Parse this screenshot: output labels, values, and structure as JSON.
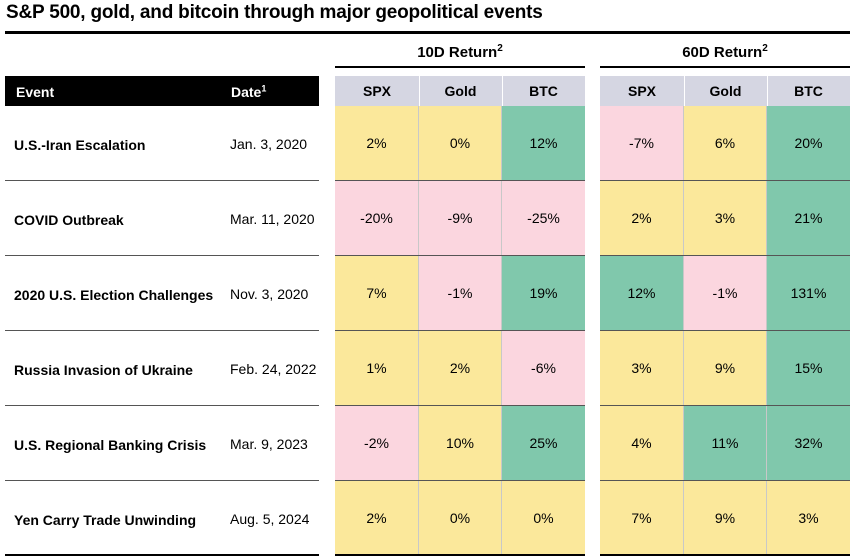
{
  "title": "S&P 500, gold, and bitcoin through major geopolitical events",
  "groups": {
    "ten": {
      "label": "10D Return",
      "sup": "2"
    },
    "sixty": {
      "label": "60D Return",
      "sup": "2"
    }
  },
  "header": {
    "event": "Event",
    "date": "Date",
    "date_sup": "1"
  },
  "columns": [
    "SPX",
    "Gold",
    "BTC"
  ],
  "colors": {
    "positive_small": "#fbe89b",
    "negative": "#fbd6df",
    "strong": "#80c8ac",
    "header_gray": "#d5d6e2"
  },
  "chart_data": {
    "type": "table",
    "title": "S&P 500, gold, and bitcoin through major geopolitical events",
    "column_groups": [
      "10D Return",
      "60D Return"
    ],
    "columns": [
      "SPX",
      "Gold",
      "BTC"
    ],
    "rows": [
      {
        "event": "U.S.-Iran Escalation",
        "date": "Jan. 3, 2020",
        "d10": [
          "2%",
          "0%",
          "12%"
        ],
        "d60": [
          "-7%",
          "6%",
          "20%"
        ],
        "c10": [
          "y",
          "y",
          "g"
        ],
        "c60": [
          "p",
          "y",
          "g"
        ]
      },
      {
        "event": "COVID Outbreak",
        "date": "Mar. 11, 2020",
        "d10": [
          "-20%",
          "-9%",
          "-25%"
        ],
        "d60": [
          "2%",
          "3%",
          "21%"
        ],
        "c10": [
          "p",
          "p",
          "p"
        ],
        "c60": [
          "y",
          "y",
          "g"
        ]
      },
      {
        "event": "2020 U.S. Election Challenges",
        "date": "Nov. 3, 2020",
        "d10": [
          "7%",
          "-1%",
          "19%"
        ],
        "d60": [
          "12%",
          "-1%",
          "131%"
        ],
        "c10": [
          "y",
          "p",
          "g"
        ],
        "c60": [
          "g",
          "p",
          "g"
        ]
      },
      {
        "event": "Russia Invasion of Ukraine",
        "date": "Feb. 24, 2022",
        "d10": [
          "1%",
          "2%",
          "-6%"
        ],
        "d60": [
          "3%",
          "9%",
          "15%"
        ],
        "c10": [
          "y",
          "y",
          "p"
        ],
        "c60": [
          "y",
          "y",
          "g"
        ]
      },
      {
        "event": "U.S. Regional Banking Crisis",
        "date": "Mar. 9, 2023",
        "d10": [
          "-2%",
          "10%",
          "25%"
        ],
        "d60": [
          "4%",
          "11%",
          "32%"
        ],
        "c10": [
          "p",
          "y",
          "g"
        ],
        "c60": [
          "y",
          "g",
          "g"
        ]
      },
      {
        "event": "Yen Carry Trade Unwinding",
        "date": "Aug. 5, 2024",
        "d10": [
          "2%",
          "0%",
          "0%"
        ],
        "d60": [
          "7%",
          "9%",
          "3%"
        ],
        "c10": [
          "y",
          "y",
          "y"
        ],
        "c60": [
          "y",
          "y",
          "y"
        ]
      }
    ]
  }
}
